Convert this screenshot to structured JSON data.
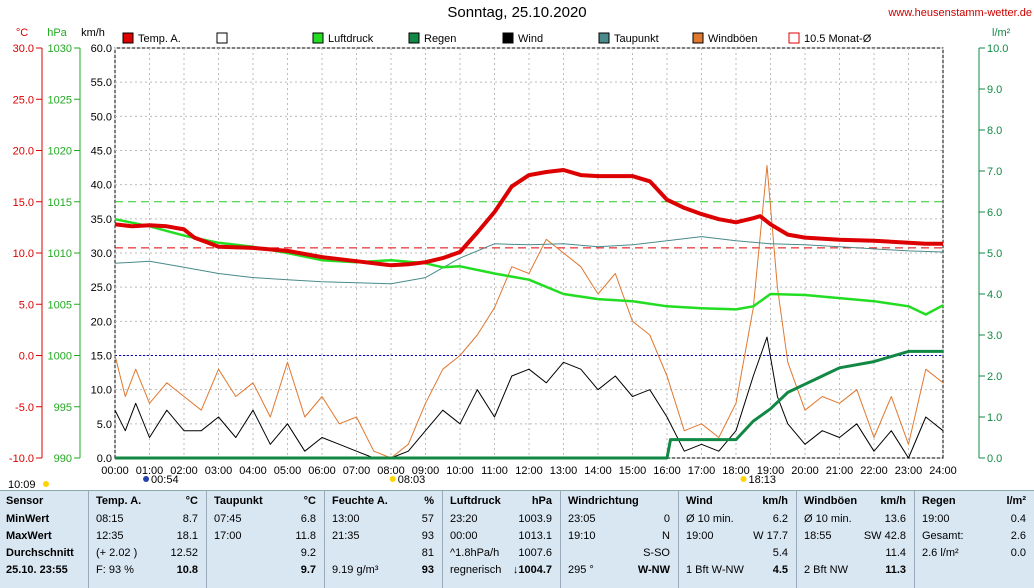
{
  "header": {
    "date": "Sonntag, 25.10.2020",
    "site": "www.heusenstamm-wetter.de"
  },
  "units": {
    "temp": "°C",
    "press": "hPa",
    "wind": "km/h",
    "rain": "l/m²"
  },
  "legend": [
    {
      "label": "Temp. A.",
      "color": "#dd0000",
      "icon": "filled"
    },
    {
      "label": "",
      "color": "#ffffff",
      "icon": "empty"
    },
    {
      "label": "Luftdruck",
      "color": "#22dd22",
      "icon": "filled"
    },
    {
      "label": "Regen",
      "color": "#118844",
      "icon": "filled"
    },
    {
      "label": "Wind",
      "color": "#000000",
      "icon": "filled"
    },
    {
      "label": "Taupunkt",
      "color": "#4a8a8a",
      "icon": "filled"
    },
    {
      "label": "Windböen",
      "color": "#e07830",
      "icon": "filled"
    },
    {
      "label": "10.5 Monat-Ø",
      "color": "#dd0000",
      "icon": "outline"
    }
  ],
  "chart_data": {
    "type": "line",
    "x_ticks": [
      "00:00",
      "01:00",
      "02:00",
      "03:00",
      "04:00",
      "05:00",
      "06:00",
      "07:00",
      "08:00",
      "09:00",
      "10:00",
      "11:00",
      "12:00",
      "13:00",
      "14:00",
      "15:00",
      "16:00",
      "17:00",
      "18:00",
      "19:00",
      "20:00",
      "21:00",
      "22:00",
      "23:00",
      "24:00"
    ],
    "temp_axis": {
      "ticks": [
        "30.0",
        "25.0",
        "20.0",
        "15.0",
        "10.0",
        "5.0",
        "0.0",
        "-5.0",
        "-10.0"
      ],
      "range": [
        -10,
        30
      ]
    },
    "press_axis": {
      "ticks": [
        "1030",
        "1025",
        "1020",
        "1015",
        "1010",
        "1005",
        "1000",
        "995",
        "990"
      ],
      "range": [
        990,
        1030
      ]
    },
    "wind_axis": {
      "ticks": [
        "60.0",
        "55.0",
        "50.0",
        "45.0",
        "40.0",
        "35.0",
        "30.0",
        "25.0",
        "20.0",
        "15.0",
        "10.0",
        "5.0",
        "0.0"
      ],
      "range": [
        0,
        60
      ]
    },
    "rain_axis": {
      "ticks": [
        "10.0",
        "9.0",
        "8.0",
        "7.0",
        "6.0",
        "5.0",
        "4.0",
        "3.0",
        "2.0",
        "1.0",
        "0.0"
      ],
      "range": [
        0,
        10
      ]
    },
    "reference_lines": {
      "temp_month_avg": 10.5,
      "press_ref": 1015,
      "temp_zero": 0
    },
    "markers": {
      "sunrise": "08:03",
      "sunset": "18:13",
      "moonrise": "00:54",
      "moonset": "10:09"
    },
    "series": [
      {
        "name": "Temp. A.",
        "axis": "temp",
        "color": "#dd0000",
        "points": [
          [
            0,
            12.8
          ],
          [
            0.5,
            12.6
          ],
          [
            1,
            12.7
          ],
          [
            1.5,
            12.6
          ],
          [
            2,
            12.3
          ],
          [
            2.3,
            11.5
          ],
          [
            2.7,
            11.0
          ],
          [
            3,
            10.6
          ],
          [
            4,
            10.5
          ],
          [
            5,
            10.2
          ],
          [
            6,
            9.6
          ],
          [
            7,
            9.2
          ],
          [
            8,
            8.8
          ],
          [
            8.5,
            8.9
          ],
          [
            9,
            9.1
          ],
          [
            9.5,
            9.5
          ],
          [
            10,
            10.1
          ],
          [
            10.5,
            12.0
          ],
          [
            11,
            14.0
          ],
          [
            11.5,
            16.5
          ],
          [
            12,
            17.6
          ],
          [
            12.5,
            17.9
          ],
          [
            13,
            18.1
          ],
          [
            13.5,
            17.6
          ],
          [
            14,
            17.5
          ],
          [
            15,
            17.5
          ],
          [
            15.5,
            17.0
          ],
          [
            16,
            15.2
          ],
          [
            16.5,
            14.4
          ],
          [
            17,
            13.8
          ],
          [
            17.5,
            13.3
          ],
          [
            18,
            13.0
          ],
          [
            18.5,
            13.4
          ],
          [
            18.7,
            13.6
          ],
          [
            19,
            12.8
          ],
          [
            19.5,
            11.8
          ],
          [
            20,
            11.5
          ],
          [
            21,
            11.3
          ],
          [
            22,
            11.2
          ],
          [
            23,
            11.0
          ],
          [
            23.5,
            10.9
          ],
          [
            24,
            10.9
          ]
        ]
      },
      {
        "name": "Luftdruck",
        "axis": "press",
        "color": "#22dd22",
        "points": [
          [
            0,
            1013.3
          ],
          [
            1,
            1012.6
          ],
          [
            2,
            1011.7
          ],
          [
            3,
            1011.0
          ],
          [
            4,
            1010.6
          ],
          [
            5,
            1010.0
          ],
          [
            6,
            1009.3
          ],
          [
            7,
            1009.1
          ],
          [
            8,
            1009.3
          ],
          [
            9,
            1009.0
          ],
          [
            9.5,
            1008.6
          ],
          [
            10,
            1008.7
          ],
          [
            11,
            1008.0
          ],
          [
            12,
            1007.4
          ],
          [
            13,
            1006.0
          ],
          [
            14,
            1005.5
          ],
          [
            15,
            1005.3
          ],
          [
            16,
            1004.8
          ],
          [
            17,
            1004.6
          ],
          [
            18,
            1004.5
          ],
          [
            18.5,
            1004.8
          ],
          [
            19,
            1006.0
          ],
          [
            20,
            1005.9
          ],
          [
            21,
            1005.6
          ],
          [
            22,
            1005.3
          ],
          [
            23,
            1004.8
          ],
          [
            23.5,
            1004.0
          ],
          [
            24,
            1004.9
          ]
        ]
      },
      {
        "name": "Taupunkt",
        "axis": "temp",
        "color": "#4a8a8a",
        "points": [
          [
            0,
            9.0
          ],
          [
            1,
            9.2
          ],
          [
            2,
            8.6
          ],
          [
            3,
            8.0
          ],
          [
            4,
            7.6
          ],
          [
            5,
            7.4
          ],
          [
            6,
            7.2
          ],
          [
            7,
            7.1
          ],
          [
            8,
            7.0
          ],
          [
            9,
            7.6
          ],
          [
            10,
            9.5
          ],
          [
            11,
            10.9
          ],
          [
            12,
            10.8
          ],
          [
            13,
            10.9
          ],
          [
            14,
            10.6
          ],
          [
            15,
            10.8
          ],
          [
            16,
            11.2
          ],
          [
            17,
            11.6
          ],
          [
            18,
            11.2
          ],
          [
            19,
            10.9
          ],
          [
            20,
            10.8
          ],
          [
            21,
            10.6
          ],
          [
            22,
            10.4
          ],
          [
            23,
            10.2
          ],
          [
            24,
            10.1
          ]
        ]
      },
      {
        "name": "Wind",
        "axis": "wind",
        "color": "#000000",
        "points": [
          [
            0,
            7
          ],
          [
            0.3,
            4
          ],
          [
            0.6,
            8
          ],
          [
            1,
            3
          ],
          [
            1.5,
            7
          ],
          [
            2,
            4
          ],
          [
            2.5,
            4
          ],
          [
            3,
            6
          ],
          [
            3.5,
            3
          ],
          [
            4,
            7
          ],
          [
            4.5,
            2
          ],
          [
            5,
            5
          ],
          [
            5.5,
            1
          ],
          [
            6,
            3
          ],
          [
            6.5,
            2
          ],
          [
            7,
            1
          ],
          [
            7.5,
            0
          ],
          [
            8,
            0
          ],
          [
            8.5,
            1
          ],
          [
            9,
            4
          ],
          [
            9.5,
            7
          ],
          [
            10,
            5
          ],
          [
            10.5,
            10
          ],
          [
            11,
            6
          ],
          [
            11.5,
            12
          ],
          [
            12,
            13
          ],
          [
            12.5,
            11
          ],
          [
            13,
            14
          ],
          [
            13.5,
            13
          ],
          [
            14,
            10
          ],
          [
            14.5,
            12
          ],
          [
            15,
            9
          ],
          [
            15.5,
            10
          ],
          [
            16,
            6
          ],
          [
            16.5,
            1
          ],
          [
            17,
            2
          ],
          [
            17.5,
            1
          ],
          [
            18,
            4
          ],
          [
            18.5,
            12
          ],
          [
            18.9,
            17.7
          ],
          [
            19.2,
            9
          ],
          [
            19.5,
            5
          ],
          [
            20,
            2
          ],
          [
            20.5,
            4
          ],
          [
            21,
            3
          ],
          [
            21.5,
            5
          ],
          [
            22,
            1
          ],
          [
            22.5,
            4
          ],
          [
            23,
            0
          ],
          [
            23.5,
            6
          ],
          [
            24,
            4
          ]
        ]
      },
      {
        "name": "Windböen",
        "axis": "wind",
        "color": "#e07830",
        "points": [
          [
            0,
            15
          ],
          [
            0.3,
            9
          ],
          [
            0.6,
            13
          ],
          [
            1,
            8
          ],
          [
            1.5,
            11
          ],
          [
            2,
            9
          ],
          [
            2.5,
            7
          ],
          [
            3,
            13
          ],
          [
            3.5,
            9
          ],
          [
            4,
            11
          ],
          [
            4.5,
            6
          ],
          [
            5,
            14
          ],
          [
            5.5,
            6
          ],
          [
            6,
            9
          ],
          [
            6.5,
            5
          ],
          [
            7,
            6
          ],
          [
            7.5,
            1
          ],
          [
            8,
            0
          ],
          [
            8.5,
            2
          ],
          [
            9,
            8
          ],
          [
            9.5,
            13
          ],
          [
            10,
            15
          ],
          [
            10.5,
            18
          ],
          [
            11,
            22
          ],
          [
            11.5,
            28
          ],
          [
            12,
            27
          ],
          [
            12.5,
            32
          ],
          [
            13,
            30
          ],
          [
            13.5,
            28
          ],
          [
            14,
            24
          ],
          [
            14.5,
            27
          ],
          [
            15,
            20
          ],
          [
            15.5,
            18
          ],
          [
            16,
            12
          ],
          [
            16.5,
            4
          ],
          [
            17,
            5
          ],
          [
            17.5,
            3
          ],
          [
            18,
            8
          ],
          [
            18.5,
            22
          ],
          [
            18.9,
            42.8
          ],
          [
            19.2,
            25
          ],
          [
            19.5,
            14
          ],
          [
            20,
            7
          ],
          [
            20.5,
            9
          ],
          [
            21,
            8
          ],
          [
            21.5,
            10
          ],
          [
            22,
            3
          ],
          [
            22.5,
            9
          ],
          [
            23,
            2
          ],
          [
            23.5,
            13
          ],
          [
            24,
            11
          ]
        ]
      },
      {
        "name": "Regen",
        "axis": "rain",
        "color": "#118844",
        "points": [
          [
            0,
            0
          ],
          [
            16,
            0
          ],
          [
            16.1,
            0.45
          ],
          [
            18,
            0.45
          ],
          [
            18.5,
            0.9
          ],
          [
            19,
            1.2
          ],
          [
            19.5,
            1.6
          ],
          [
            20,
            1.8
          ],
          [
            20.5,
            2.0
          ],
          [
            21,
            2.2
          ],
          [
            22,
            2.35
          ],
          [
            23,
            2.6
          ],
          [
            24,
            2.6
          ]
        ]
      }
    ]
  },
  "stats": {
    "sensor": {
      "header": "Sensor",
      "labels": [
        "MinWert",
        "MaxWert",
        "Durchschnitt"
      ],
      "footer": "25.10. 23:55"
    },
    "temp": {
      "header": "Temp. A.",
      "unit": "°C",
      "rows": [
        [
          "08:15",
          "8.7"
        ],
        [
          "12:35",
          "18.1"
        ],
        [
          "(+ 2.02 )",
          "12.52"
        ]
      ],
      "footer": [
        "F: 93 %",
        "10.8"
      ]
    },
    "dew": {
      "header": "Taupunkt",
      "unit": "°C",
      "rows": [
        [
          "07:45",
          "6.8"
        ],
        [
          "17:00",
          "11.8"
        ],
        [
          "",
          "9.2"
        ]
      ],
      "footer": [
        "",
        "9.7"
      ]
    },
    "hum": {
      "header": "Feuchte A.",
      "unit": "%",
      "rows": [
        [
          "13:00",
          "57"
        ],
        [
          "21:35",
          "93"
        ],
        [
          "",
          "81"
        ]
      ],
      "footer": [
        "9.19 g/m³",
        "93"
      ]
    },
    "press": {
      "header": "Luftdruck",
      "unit": "hPa",
      "rows": [
        [
          "23:20",
          "1003.9"
        ],
        [
          "00:00",
          "1013.1"
        ],
        [
          "^1.8hPa/h",
          "1007.6"
        ]
      ],
      "footer": [
        "regnerisch",
        "↓1004.7"
      ]
    },
    "dir": {
      "header": "Windrichtung",
      "unit": "",
      "rows": [
        [
          "23:05",
          "0"
        ],
        [
          "19:10",
          "N"
        ],
        [
          "",
          "S-SO"
        ]
      ],
      "footer": [
        "295 °",
        "W-NW"
      ]
    },
    "wind": {
      "header": "Wind",
      "unit": "km/h",
      "rows": [
        [
          "Ø 10 min.",
          "6.2"
        ],
        [
          "19:00",
          "W 17.7"
        ],
        [
          "",
          "5.4"
        ]
      ],
      "footer": [
        "1 Bft W-NW",
        "4.5"
      ]
    },
    "gust": {
      "header": "Windböen",
      "unit": "km/h",
      "rows": [
        [
          "Ø 10 min.",
          "13.6"
        ],
        [
          "18:55",
          "SW 42.8"
        ],
        [
          "",
          "11.4"
        ]
      ],
      "footer": [
        "2 Bft NW",
        "11.3"
      ]
    },
    "rain": {
      "header": "Regen",
      "unit": "l/m²",
      "rows": [
        [
          "19:00",
          "0.4"
        ],
        [
          "Gesamt:",
          "2.6"
        ],
        [
          "2.6 l/m²",
          "0.0"
        ]
      ],
      "footer": [
        "",
        ""
      ]
    }
  }
}
